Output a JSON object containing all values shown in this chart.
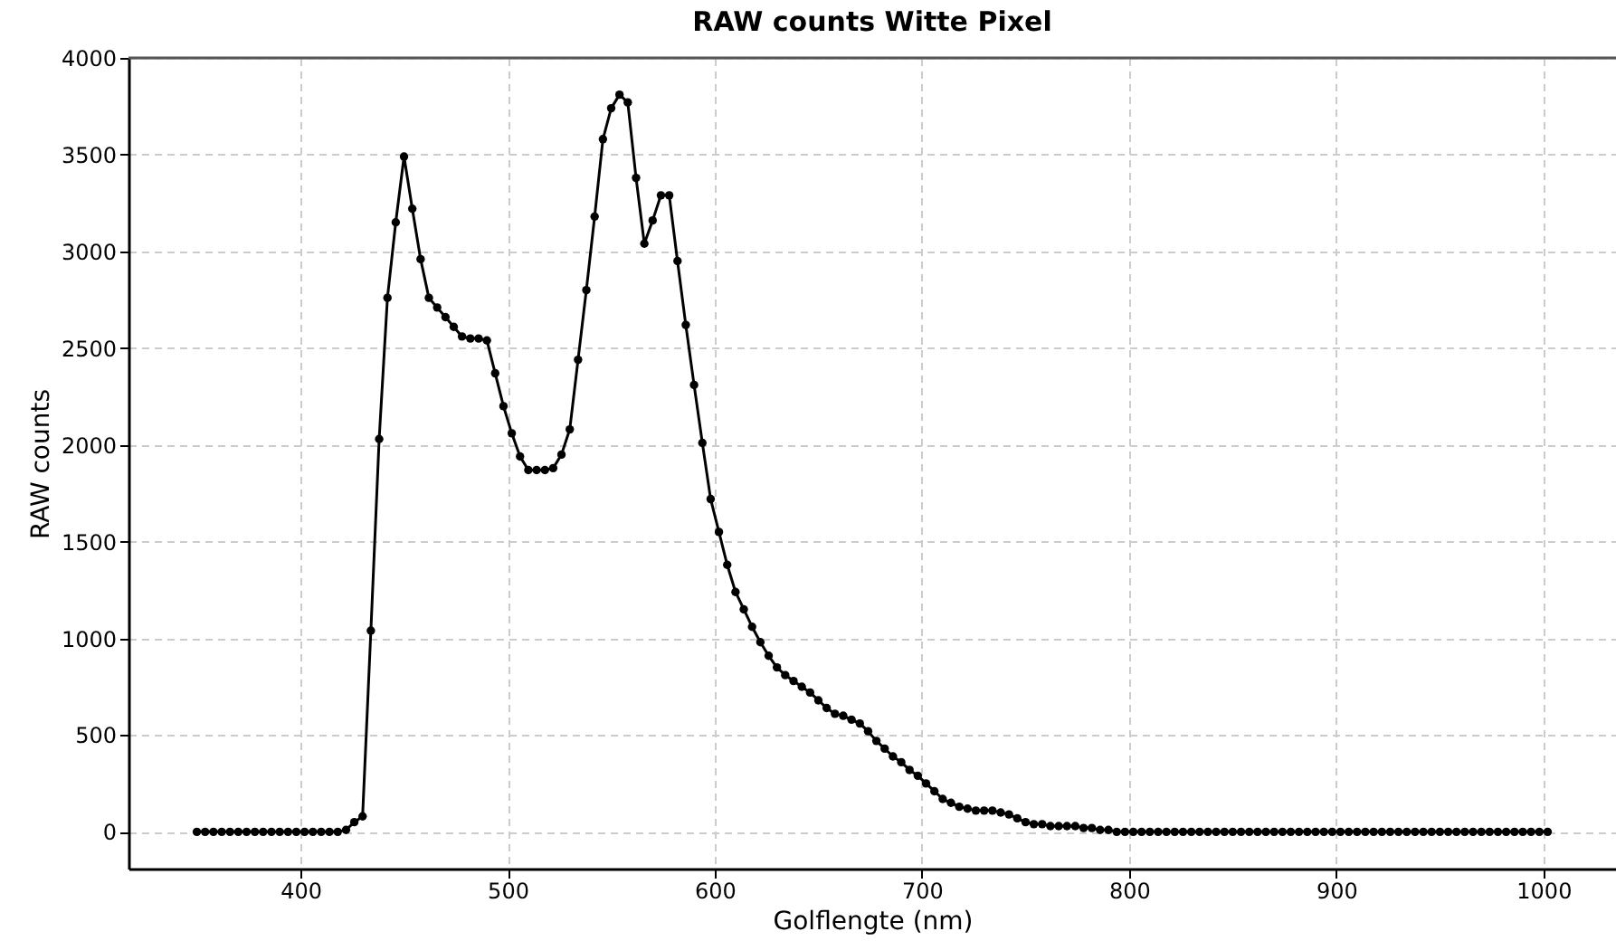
{
  "chart_data": {
    "type": "line",
    "title": "RAW counts Witte Pixel",
    "xlabel": "Golflengte (nm)",
    "ylabel": "RAW counts",
    "x": [
      350,
      354,
      358,
      362,
      366,
      370,
      374,
      378,
      382,
      386,
      390,
      394,
      398,
      402,
      406,
      410,
      414,
      418,
      422,
      426,
      430,
      434,
      438,
      442,
      446,
      450,
      454,
      458,
      462,
      466,
      470,
      474,
      478,
      482,
      486,
      490,
      494,
      498,
      502,
      506,
      510,
      514,
      518,
      522,
      526,
      530,
      534,
      538,
      542,
      546,
      550,
      554,
      558,
      562,
      566,
      570,
      574,
      578,
      582,
      586,
      590,
      594,
      598,
      602,
      606,
      610,
      614,
      618,
      622,
      626,
      630,
      634,
      638,
      642,
      646,
      650,
      654,
      658,
      662,
      666,
      670,
      674,
      678,
      682,
      686,
      690,
      694,
      698,
      702,
      706,
      710,
      714,
      718,
      722,
      726,
      730,
      734,
      738,
      742,
      746,
      750,
      754,
      758,
      762,
      766,
      770,
      774,
      778,
      782,
      786,
      790,
      794,
      798,
      802,
      806,
      810,
      814,
      818,
      822,
      826,
      830,
      834,
      838,
      842,
      846,
      850,
      854,
      858,
      862,
      866,
      870,
      874,
      878,
      882,
      886,
      890,
      894,
      898,
      902,
      906,
      910,
      914,
      918,
      922,
      926,
      930,
      934,
      938,
      942,
      946,
      950,
      954,
      958,
      962,
      966,
      970,
      974,
      978,
      982,
      986,
      990,
      994,
      998,
      1002
    ],
    "series": [
      {
        "color": "#000000",
        "values": [
          0,
          0,
          0,
          0,
          0,
          0,
          0,
          0,
          0,
          0,
          0,
          0,
          0,
          0,
          0,
          0,
          0,
          0,
          10,
          50,
          80,
          1040,
          2030,
          2760,
          3150,
          3490,
          3220,
          2960,
          2760,
          2710,
          2660,
          2610,
          2560,
          2550,
          2550,
          2540,
          2370,
          2200,
          2060,
          1940,
          1870,
          1870,
          1870,
          1880,
          1950,
          2080,
          2440,
          2800,
          3180,
          3580,
          3740,
          3810,
          3770,
          3380,
          3040,
          3160,
          3290,
          3290,
          2950,
          2620,
          2310,
          2010,
          1720,
          1550,
          1380,
          1240,
          1150,
          1060,
          980,
          910,
          850,
          810,
          780,
          750,
          720,
          680,
          640,
          610,
          600,
          580,
          560,
          520,
          470,
          430,
          390,
          360,
          320,
          290,
          250,
          210,
          170,
          150,
          130,
          120,
          110,
          110,
          110,
          100,
          90,
          70,
          50,
          40,
          40,
          30,
          30,
          30,
          30,
          20,
          20,
          10,
          10,
          0,
          0,
          0,
          0,
          0,
          0,
          0,
          0,
          0,
          0,
          0,
          0,
          0,
          0,
          0,
          0,
          0,
          0,
          0,
          0,
          0,
          0,
          0,
          0,
          0,
          0,
          0,
          0,
          0,
          0,
          0,
          0,
          0,
          0,
          0,
          0,
          0,
          0,
          0,
          0,
          0,
          0,
          0,
          0,
          0,
          0,
          0,
          0,
          0,
          0,
          0,
          0,
          0
        ]
      }
    ],
    "xlim": [
      317,
      1035
    ],
    "ylim": [
      -190,
      4000
    ],
    "xticks": [
      400,
      500,
      600,
      700,
      800,
      900,
      1000
    ],
    "yticks": [
      0,
      500,
      1000,
      1500,
      2000,
      2500,
      3000,
      3500,
      4000
    ],
    "grid": true,
    "marker": "circle",
    "line_style": "solid"
  }
}
